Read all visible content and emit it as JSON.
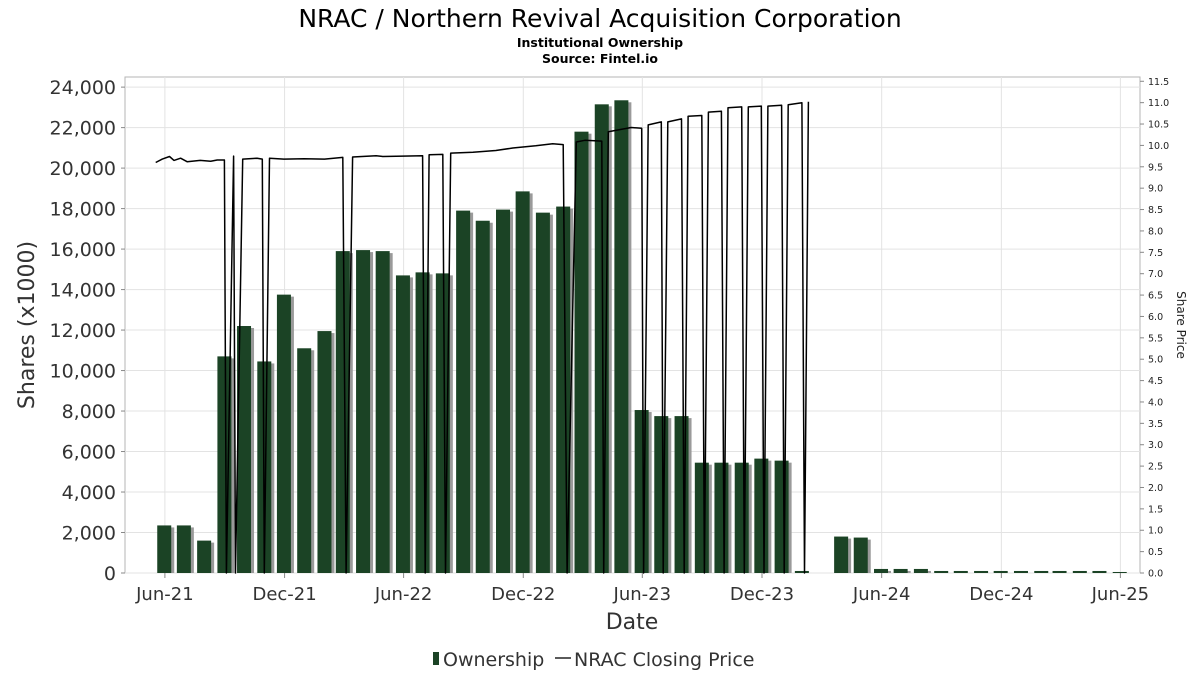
{
  "chart_data": {
    "type": "bar",
    "title": "NRAC / Northern Revival Acquisition Corporation",
    "subtitle": "Institutional Ownership",
    "source": "Source: Fintel.io",
    "xlabel": "Date",
    "ylabel": "Shares (x1000)",
    "y2label": "Share Price",
    "ylim": [
      0,
      24500
    ],
    "y2lim": [
      0,
      11.6
    ],
    "xlim": [
      "2021-04-01",
      "2025-07-01"
    ],
    "y_ticks": [
      "0",
      "2,000",
      "4,000",
      "6,000",
      "8,000",
      "10,000",
      "12,000",
      "14,000",
      "16,000",
      "18,000",
      "20,000",
      "22,000",
      "24,000"
    ],
    "y_tick_values": [
      0,
      2000,
      4000,
      6000,
      8000,
      10000,
      12000,
      14000,
      16000,
      18000,
      20000,
      22000,
      24000
    ],
    "y2_ticks": [
      "0.0",
      "0.5",
      "1.0",
      "1.5",
      "2.0",
      "2.5",
      "3.0",
      "3.5",
      "4.0",
      "4.5",
      "5.0",
      "5.5",
      "6.0",
      "6.5",
      "7.0",
      "7.5",
      "8.0",
      "8.5",
      "9.0",
      "9.5",
      "10.0",
      "10.5",
      "11.0",
      "11.5"
    ],
    "y2_tick_values": [
      0,
      0.5,
      1,
      1.5,
      2,
      2.5,
      3,
      3.5,
      4,
      4.5,
      5,
      5.5,
      6,
      6.5,
      7,
      7.5,
      8,
      8.5,
      9,
      9.5,
      10,
      10.5,
      11,
      11.5
    ],
    "x_ticks": [
      "Jun-21",
      "Dec-21",
      "Jun-22",
      "Dec-22",
      "Jun-23",
      "Dec-23",
      "Jun-24",
      "Dec-24",
      "Jun-25"
    ],
    "x_tick_dates": [
      "2021-06-01",
      "2021-12-01",
      "2022-06-01",
      "2022-12-01",
      "2023-06-01",
      "2023-12-01",
      "2024-06-01",
      "2024-12-01",
      "2025-06-01"
    ],
    "grid": true,
    "legend_position": "bottom-center",
    "colors": {
      "bar": "#1b4325",
      "bar_shadow": "#9a9a9a",
      "line": "#000000",
      "grid": "#e3e3e3"
    },
    "series": [
      {
        "name": "Ownership",
        "type": "bar",
        "x": [
          "2021-05-31",
          "2021-06-30",
          "2021-07-31",
          "2021-08-31",
          "2021-09-30",
          "2021-10-31",
          "2021-11-30",
          "2021-12-31",
          "2022-01-31",
          "2022-02-28",
          "2022-03-31",
          "2022-04-30",
          "2022-05-31",
          "2022-06-30",
          "2022-07-31",
          "2022-08-31",
          "2022-09-30",
          "2022-10-31",
          "2022-11-30",
          "2022-12-31",
          "2023-01-31",
          "2023-02-28",
          "2023-03-31",
          "2023-04-30",
          "2023-05-31",
          "2023-06-30",
          "2023-07-31",
          "2023-08-31",
          "2023-09-30",
          "2023-10-31",
          "2023-11-30",
          "2023-12-31",
          "2024-01-31",
          "2024-02-29",
          "2024-03-31",
          "2024-04-30",
          "2024-05-31",
          "2024-06-30",
          "2024-07-31",
          "2024-08-31",
          "2024-09-30",
          "2024-10-31",
          "2024-11-30",
          "2024-12-31",
          "2025-01-31",
          "2025-02-28",
          "2025-03-31",
          "2025-04-30",
          "2025-05-31"
        ],
        "values": [
          2350,
          2350,
          1600,
          10700,
          12200,
          10450,
          13750,
          11100,
          11950,
          15900,
          15950,
          15900,
          14700,
          14850,
          14800,
          17900,
          17400,
          17950,
          18850,
          17800,
          18100,
          21800,
          23150,
          23350,
          8050,
          7750,
          7750,
          5450,
          5450,
          5450,
          5650,
          5550,
          100,
          0,
          1800,
          1750,
          200,
          200,
          200,
          100,
          100,
          100,
          100,
          100,
          100,
          100,
          100,
          100,
          50
        ]
      },
      {
        "name": "NRAC Closing Price",
        "type": "line",
        "points": [
          [
            "2021-05-18",
            9.6
          ],
          [
            "2021-05-28",
            9.68
          ],
          [
            "2021-06-08",
            9.74
          ],
          [
            "2021-06-15",
            9.65
          ],
          [
            "2021-06-25",
            9.7
          ],
          [
            "2021-07-05",
            9.62
          ],
          [
            "2021-07-25",
            9.65
          ],
          [
            "2021-08-10",
            9.63
          ],
          [
            "2021-08-20",
            9.66
          ],
          [
            "2021-08-31",
            9.66
          ],
          [
            "2021-09-03",
            0.0
          ],
          [
            "2021-09-14",
            9.75
          ],
          [
            "2021-09-17",
            0.0
          ],
          [
            "2021-09-28",
            9.68
          ],
          [
            "2021-10-20",
            9.7
          ],
          [
            "2021-10-28",
            9.68
          ],
          [
            "2021-10-31",
            0.0
          ],
          [
            "2021-11-08",
            9.7
          ],
          [
            "2021-11-30",
            9.68
          ],
          [
            "2021-12-31",
            9.69
          ],
          [
            "2022-01-31",
            9.68
          ],
          [
            "2022-02-28",
            9.72
          ],
          [
            "2022-03-05",
            0.0
          ],
          [
            "2022-03-15",
            9.73
          ],
          [
            "2022-04-20",
            9.76
          ],
          [
            "2022-04-30",
            9.74
          ],
          [
            "2022-05-31",
            9.75
          ],
          [
            "2022-06-30",
            9.76
          ],
          [
            "2022-07-04",
            0.0
          ],
          [
            "2022-07-10",
            9.78
          ],
          [
            "2022-07-31",
            9.79
          ],
          [
            "2022-08-04",
            0.0
          ],
          [
            "2022-08-12",
            9.82
          ],
          [
            "2022-09-15",
            9.84
          ],
          [
            "2022-10-20",
            9.88
          ],
          [
            "2022-11-15",
            9.94
          ],
          [
            "2022-12-20",
            9.99
          ],
          [
            "2023-01-15",
            10.04
          ],
          [
            "2023-01-31",
            10.02
          ],
          [
            "2023-02-06",
            0.0
          ],
          [
            "2023-02-20",
            10.08
          ],
          [
            "2023-03-05",
            10.12
          ],
          [
            "2023-03-31",
            10.1
          ],
          [
            "2023-04-03",
            0.0
          ],
          [
            "2023-04-10",
            10.32
          ],
          [
            "2023-05-15",
            10.42
          ],
          [
            "2023-05-31",
            10.4
          ],
          [
            "2023-06-03",
            0.0
          ],
          [
            "2023-06-10",
            10.48
          ],
          [
            "2023-06-30",
            10.55
          ],
          [
            "2023-07-03",
            0.0
          ],
          [
            "2023-07-10",
            10.55
          ],
          [
            "2023-07-31",
            10.62
          ],
          [
            "2023-08-04",
            0.0
          ],
          [
            "2023-08-10",
            10.68
          ],
          [
            "2023-08-31",
            10.7
          ],
          [
            "2023-09-04",
            0.0
          ],
          [
            "2023-09-10",
            10.78
          ],
          [
            "2023-09-30",
            10.8
          ],
          [
            "2023-10-04",
            0.0
          ],
          [
            "2023-10-10",
            10.88
          ],
          [
            "2023-10-31",
            10.9
          ],
          [
            "2023-11-04",
            0.0
          ],
          [
            "2023-11-10",
            10.9
          ],
          [
            "2023-11-30",
            10.92
          ],
          [
            "2023-12-04",
            0.0
          ],
          [
            "2023-12-10",
            10.92
          ],
          [
            "2023-12-31",
            10.94
          ],
          [
            "2024-01-04",
            0.0
          ],
          [
            "2024-01-10",
            10.95
          ],
          [
            "2024-01-31",
            11.0
          ],
          [
            "2024-02-04",
            0.0
          ],
          [
            "2024-02-10",
            11.02
          ]
        ]
      }
    ]
  },
  "legend": {
    "items": [
      {
        "label": "Ownership",
        "kind": "bar"
      },
      {
        "label": "NRAC Closing Price",
        "kind": "line"
      }
    ]
  }
}
